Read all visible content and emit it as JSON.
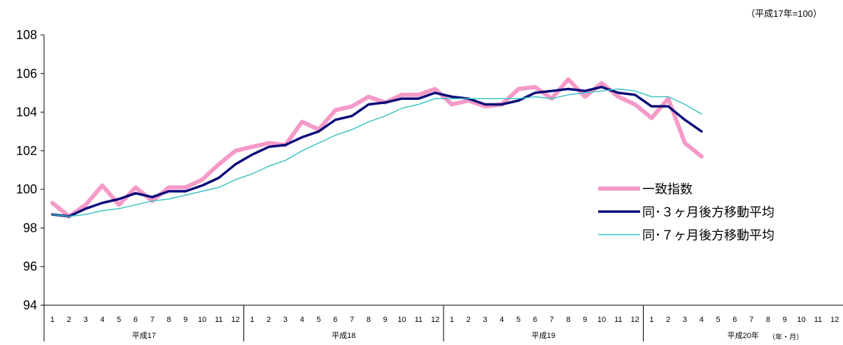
{
  "chart_data": {
    "type": "line",
    "unit_note": "（平成17年=100）",
    "yticks": [
      "108",
      "106",
      "104",
      "102",
      "100",
      "98",
      "96",
      "94"
    ],
    "ylim": [
      94,
      108
    ],
    "month_labels": [
      "1",
      "2",
      "3",
      "4",
      "5",
      "6",
      "7",
      "8",
      "9",
      "10",
      "11",
      "12"
    ],
    "years": [
      "平成17",
      "平成18",
      "平成19",
      "平成20年"
    ],
    "x_unit_label": "（年・月）",
    "legend_placement": "center-right",
    "series": [
      {
        "name": "一致指数",
        "color": "#f59ac8",
        "values": [
          99.3,
          98.6,
          99.2,
          100.2,
          99.2,
          100.1,
          99.4,
          100.1,
          100.1,
          100.5,
          101.3,
          102.0,
          102.2,
          102.4,
          102.3,
          103.5,
          103.1,
          104.1,
          104.3,
          104.8,
          104.5,
          104.9,
          104.9,
          105.2,
          104.4,
          104.6,
          104.3,
          104.4,
          105.2,
          105.3,
          104.7,
          105.7,
          104.8,
          105.5,
          104.8,
          104.4,
          103.7,
          104.7,
          102.4,
          101.7
        ]
      },
      {
        "name": "同･３ヶ月後方移動平均",
        "color": "#0a0a7a",
        "values": [
          98.7,
          98.6,
          99.0,
          99.3,
          99.5,
          99.8,
          99.6,
          99.9,
          99.9,
          100.2,
          100.6,
          101.3,
          101.8,
          102.2,
          102.3,
          102.7,
          103.0,
          103.6,
          103.8,
          104.4,
          104.5,
          104.7,
          104.7,
          105.0,
          104.8,
          104.7,
          104.4,
          104.4,
          104.6,
          105.0,
          105.1,
          105.2,
          105.1,
          105.3,
          105.0,
          104.9,
          104.3,
          104.3,
          103.6,
          103.0
        ]
      },
      {
        "name": "同･７ヶ月後方移動平均",
        "color": "#3cc3c3",
        "values": [
          98.7,
          98.6,
          98.7,
          98.9,
          99.0,
          99.2,
          99.4,
          99.5,
          99.7,
          99.9,
          100.1,
          100.5,
          100.8,
          101.2,
          101.5,
          102.0,
          102.4,
          102.8,
          103.1,
          103.5,
          103.8,
          104.2,
          104.4,
          104.7,
          104.7,
          104.7,
          104.7,
          104.7,
          104.7,
          104.8,
          104.7,
          104.9,
          105.0,
          105.1,
          105.2,
          105.1,
          104.8,
          104.8,
          104.4,
          103.9
        ]
      }
    ]
  }
}
